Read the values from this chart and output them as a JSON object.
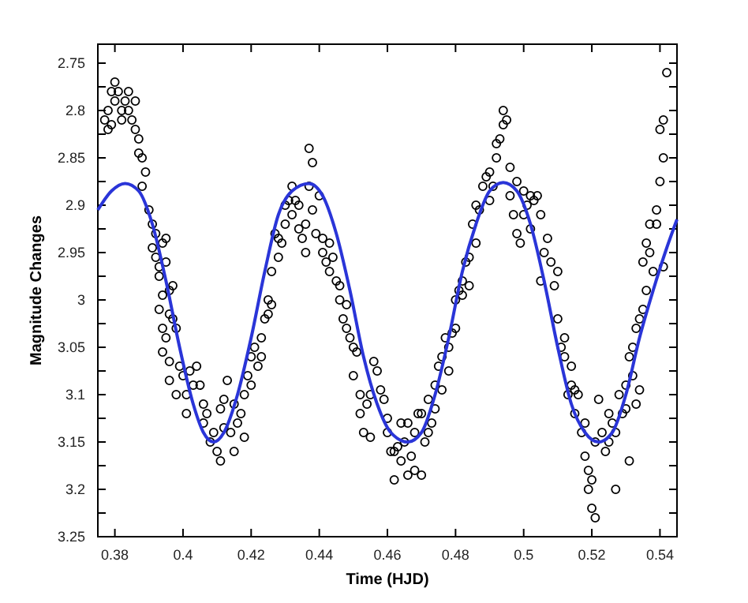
{
  "chart_data": {
    "type": "scatter",
    "xlabel": "Time (HJD)",
    "ylabel": "Magnitude Changes",
    "xlim": [
      0.375,
      0.545
    ],
    "xticks": [
      0.38,
      {
        "value": 0.4,
        "label": "0.4"
      },
      0.42,
      0.44,
      0.46,
      0.48,
      {
        "value": 0.5,
        "label": "0.5"
      },
      0.52,
      0.54
    ],
    "ylim": [
      3.25,
      2.73
    ],
    "yticks": [
      2.75,
      {
        "value": 2.775,
        "label": null
      },
      {
        "value": 2.8,
        "label": "2.8"
      },
      {
        "value": 2.825,
        "label": null
      },
      2.85,
      {
        "value": 2.875,
        "label": null
      },
      {
        "value": 2.9,
        "label": "2.9"
      },
      {
        "value": 2.925,
        "label": null
      },
      2.95,
      {
        "value": 2.975,
        "label": null
      },
      {
        "value": 3,
        "label": "3"
      },
      {
        "value": 3.025,
        "label": null
      },
      3.05,
      {
        "value": 3.075,
        "label": null
      },
      {
        "value": 3.1,
        "label": "3.1"
      },
      {
        "value": 3.125,
        "label": null
      },
      3.15,
      {
        "value": 3.175,
        "label": null
      },
      {
        "value": 3.2,
        "label": "3.2"
      },
      {
        "value": 3.225,
        "label": null
      },
      3.25
    ],
    "grid": false,
    "series": [
      {
        "marker": "circle",
        "color": "#000000",
        "x": [
          0.377,
          0.378,
          0.379,
          0.38,
          0.38,
          0.381,
          0.382,
          0.382,
          0.383,
          0.384,
          0.384,
          0.385,
          0.378,
          0.379,
          0.386,
          0.386,
          0.387,
          0.387,
          0.388,
          0.389,
          0.388,
          0.39,
          0.391,
          0.392,
          0.391,
          0.392,
          0.393,
          0.394,
          0.395,
          0.393,
          0.395,
          0.396,
          0.397,
          0.394,
          0.393,
          0.394,
          0.395,
          0.396,
          0.397,
          0.398,
          0.394,
          0.396,
          0.396,
          0.398,
          0.399,
          0.4,
          0.401,
          0.401,
          0.402,
          0.403,
          0.404,
          0.405,
          0.406,
          0.406,
          0.407,
          0.408,
          0.409,
          0.41,
          0.411,
          0.411,
          0.412,
          0.412,
          0.413,
          0.414,
          0.415,
          0.415,
          0.416,
          0.417,
          0.418,
          0.418,
          0.419,
          0.42,
          0.42,
          0.421,
          0.422,
          0.423,
          0.423,
          0.424,
          0.425,
          0.426,
          0.425,
          0.426,
          0.427,
          0.428,
          0.428,
          0.429,
          0.43,
          0.43,
          0.431,
          0.432,
          0.432,
          0.433,
          0.434,
          0.434,
          0.435,
          0.436,
          0.436,
          0.437,
          0.437,
          0.438,
          0.438,
          0.439,
          0.44,
          0.441,
          0.442,
          0.443,
          0.441,
          0.443,
          0.444,
          0.445,
          0.446,
          0.446,
          0.447,
          0.448,
          0.448,
          0.449,
          0.45,
          0.451,
          0.45,
          0.452,
          0.452,
          0.453,
          0.454,
          0.455,
          0.455,
          0.456,
          0.457,
          0.458,
          0.459,
          0.46,
          0.46,
          0.461,
          0.462,
          0.462,
          0.463,
          0.464,
          0.464,
          0.465,
          0.466,
          0.466,
          0.467,
          0.468,
          0.468,
          0.469,
          0.47,
          0.47,
          0.471,
          0.472,
          0.472,
          0.473,
          0.474,
          0.474,
          0.475,
          0.476,
          0.476,
          0.477,
          0.478,
          0.478,
          0.479,
          0.48,
          0.48,
          0.481,
          0.482,
          0.482,
          0.483,
          0.484,
          0.484,
          0.485,
          0.486,
          0.486,
          0.487,
          0.488,
          0.489,
          0.49,
          0.49,
          0.491,
          0.492,
          0.492,
          0.493,
          0.494,
          0.494,
          0.495,
          0.496,
          0.496,
          0.497,
          0.498,
          0.498,
          0.499,
          0.5,
          0.5,
          0.501,
          0.502,
          0.502,
          0.503,
          0.504,
          0.505,
          0.505,
          0.506,
          0.507,
          0.508,
          0.509,
          0.51,
          0.51,
          0.511,
          0.512,
          0.512,
          0.513,
          0.514,
          0.514,
          0.515,
          0.515,
          0.516,
          0.517,
          0.518,
          0.518,
          0.519,
          0.519,
          0.52,
          0.52,
          0.521,
          0.521,
          0.522,
          0.523,
          0.524,
          0.525,
          0.525,
          0.526,
          0.527,
          0.527,
          0.528,
          0.529,
          0.53,
          0.53,
          0.531,
          0.531,
          0.532,
          0.532,
          0.533,
          0.533,
          0.534,
          0.534,
          0.535,
          0.535,
          0.536,
          0.536,
          0.537,
          0.537,
          0.538,
          0.539,
          0.539,
          0.54,
          0.54,
          0.541,
          0.541,
          0.542,
          0.541
        ],
        "values": [
          2.81,
          2.8,
          2.78,
          2.77,
          2.79,
          2.78,
          2.8,
          2.81,
          2.79,
          2.78,
          2.8,
          2.81,
          2.82,
          2.815,
          2.79,
          2.82,
          2.83,
          2.845,
          2.85,
          2.865,
          2.88,
          2.905,
          2.92,
          2.93,
          2.945,
          2.955,
          2.965,
          2.94,
          2.935,
          2.975,
          2.96,
          2.99,
          2.985,
          2.995,
          3.01,
          3.03,
          3.04,
          3.015,
          3.02,
          3.03,
          3.055,
          3.065,
          3.085,
          3.1,
          3.07,
          3.08,
          3.1,
          3.12,
          3.075,
          3.09,
          3.07,
          3.09,
          3.11,
          3.13,
          3.12,
          3.15,
          3.14,
          3.16,
          3.17,
          3.115,
          3.105,
          3.135,
          3.085,
          3.14,
          3.16,
          3.11,
          3.13,
          3.12,
          3.145,
          3.1,
          3.08,
          3.06,
          3.09,
          3.05,
          3.07,
          3.04,
          3.06,
          3.02,
          3,
          3.005,
          3.015,
          2.97,
          2.93,
          2.935,
          2.955,
          2.94,
          2.9,
          2.92,
          2.895,
          2.88,
          2.91,
          2.895,
          2.9,
          2.925,
          2.935,
          2.92,
          2.95,
          2.88,
          2.84,
          2.855,
          2.905,
          2.93,
          2.89,
          2.95,
          2.96,
          2.97,
          2.935,
          2.94,
          2.955,
          2.98,
          3,
          2.985,
          3.02,
          3.005,
          3.03,
          3.04,
          3.05,
          3.055,
          3.08,
          3.1,
          3.12,
          3.14,
          3.11,
          3.145,
          3.1,
          3.065,
          3.075,
          3.095,
          3.105,
          3.14,
          3.125,
          3.16,
          3.19,
          3.16,
          3.155,
          3.17,
          3.13,
          3.15,
          3.13,
          3.185,
          3.165,
          3.18,
          3.14,
          3.12,
          3.12,
          3.185,
          3.15,
          3.105,
          3.14,
          3.13,
          3.09,
          3.115,
          3.07,
          3.095,
          3.06,
          3.04,
          3.05,
          3.075,
          3.035,
          3.03,
          3,
          2.99,
          2.98,
          2.995,
          2.96,
          2.955,
          2.985,
          2.92,
          2.94,
          2.9,
          2.905,
          2.88,
          2.87,
          2.865,
          2.895,
          2.88,
          2.85,
          2.835,
          2.83,
          2.815,
          2.8,
          2.81,
          2.86,
          2.89,
          2.91,
          2.93,
          2.875,
          2.94,
          2.91,
          2.885,
          2.9,
          2.925,
          2.89,
          2.895,
          2.89,
          2.91,
          2.98,
          2.95,
          2.935,
          2.96,
          2.985,
          2.97,
          3.02,
          3.05,
          3.04,
          3.06,
          3.1,
          3.09,
          3.07,
          3.095,
          3.12,
          3.1,
          3.14,
          3.13,
          3.165,
          3.18,
          3.2,
          3.19,
          3.22,
          3.23,
          3.15,
          3.105,
          3.14,
          3.16,
          3.12,
          3.15,
          3.13,
          3.14,
          3.2,
          3.1,
          3.12,
          3.09,
          3.115,
          3.17,
          3.06,
          3.08,
          3.05,
          3.11,
          3.03,
          3.095,
          3.02,
          2.96,
          3.01,
          2.99,
          2.94,
          2.92,
          2.95,
          2.97,
          2.92,
          2.905,
          2.875,
          2.82,
          2.85,
          2.965,
          2.76,
          2.81
        ]
      },
      {
        "type": "line",
        "marker": "none",
        "line_style": "solid",
        "color": "#2a35d8",
        "x": [
          0.375,
          0.379,
          0.383,
          0.387,
          0.391,
          0.395,
          0.399,
          0.403,
          0.406,
          0.409,
          0.412,
          0.416,
          0.42,
          0.424,
          0.428,
          0.432,
          0.437,
          0.441,
          0.445,
          0.449,
          0.453,
          0.457,
          0.461,
          0.466,
          0.47,
          0.474,
          0.478,
          0.482,
          0.486,
          0.49,
          0.494,
          0.498,
          0.502,
          0.506,
          0.51,
          0.514,
          0.518,
          0.522,
          0.526,
          0.53,
          0.534,
          0.538,
          0.542,
          0.545
        ],
        "values": [
          2.905,
          2.885,
          2.877,
          2.885,
          2.92,
          2.98,
          3.05,
          3.11,
          3.14,
          3.15,
          3.14,
          3.1,
          3.04,
          2.97,
          2.91,
          2.885,
          2.877,
          2.89,
          2.93,
          2.99,
          3.06,
          3.11,
          3.14,
          3.15,
          3.14,
          3.1,
          3.04,
          2.97,
          2.92,
          2.885,
          2.876,
          2.885,
          2.92,
          2.98,
          3.05,
          3.11,
          3.14,
          3.15,
          3.14,
          3.1,
          3.04,
          2.99,
          2.945,
          2.915
        ]
      }
    ]
  }
}
